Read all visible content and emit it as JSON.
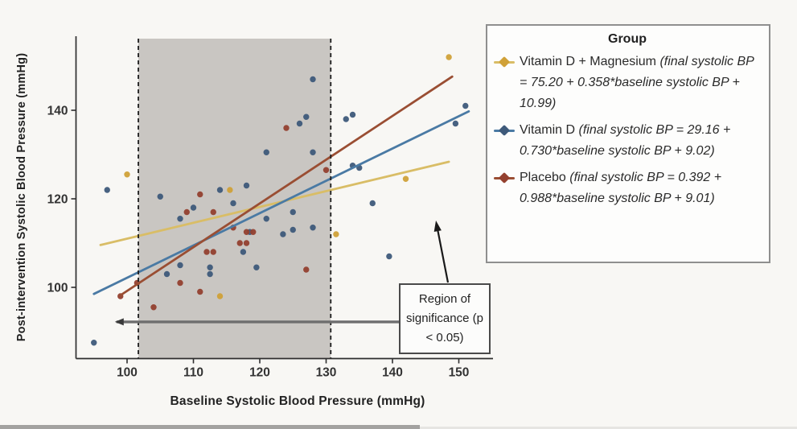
{
  "figure": {
    "y_axis_label": "Post-intervention Systolic Blood Pressure (mmHg)",
    "x_axis_label": "Baseline Systolic Blood Pressure (mmHg)"
  },
  "legend": {
    "title": "Group",
    "entries": [
      {
        "name": "Vitamin D + Magnesium",
        "equation": "(final systolic BP = 75.20 + 0.358*baseline systolic BP + 10.99)",
        "key_color": "#d0a138",
        "line_color": "#d9bd66"
      },
      {
        "name": "Vitamin D",
        "equation": "(final systolic BP = 29.16 + 0.730*baseline systolic BP + 9.02)",
        "key_color": "#3e5a7a",
        "line_color": "#4a7aa4"
      },
      {
        "name": "Placebo",
        "equation": "(final systolic BP = 0.392 + 0.988*baseline systolic BP + 9.01)",
        "key_color": "#94402f",
        "line_color": "#9a4e33"
      }
    ]
  },
  "annotation": {
    "text": "Region of significance (p < 0.05)"
  },
  "chart_data": {
    "type": "scatter",
    "title": "",
    "xlabel": "Baseline Systolic Blood Pressure (mmHg)",
    "ylabel": "Post-intervention Systolic Blood Pressure (mmHg)",
    "xlim": [
      93,
      155
    ],
    "ylim": [
      84,
      157
    ],
    "x_ticks": [
      100,
      110,
      120,
      130,
      140,
      150
    ],
    "y_ticks": [
      100,
      120,
      140
    ],
    "grid": false,
    "legend_position": "right",
    "region_of_significance": {
      "x_start": 101.7,
      "x_end": 130.7,
      "fill": "#c9c6c2",
      "boundary_style": "dashed"
    },
    "significance_segment": {
      "y": 92.2,
      "x_start": 98.4,
      "x_end": 141.0,
      "color": "#6e6e6e"
    },
    "series": [
      {
        "name": "Vitamin D + Magnesium",
        "point_color": "#d0a138",
        "line_color": "#d9bd66",
        "regression": {
          "intercept": 75.2,
          "slope": 0.358,
          "x_range": [
            96,
            148.5
          ]
        },
        "points": [
          [
            100,
            125.5
          ],
          [
            115.5,
            122
          ],
          [
            131.5,
            112
          ],
          [
            142,
            124.5
          ],
          [
            148.5,
            152
          ],
          [
            114,
            98
          ]
        ]
      },
      {
        "name": "Vitamin D",
        "point_color": "#3e5a7a",
        "line_color": "#4a7aa4",
        "regression": {
          "intercept": 29.16,
          "slope": 0.73,
          "x_range": [
            95,
            151.5
          ]
        },
        "points": [
          [
            95,
            87.5
          ],
          [
            97,
            122
          ],
          [
            105,
            120.5
          ],
          [
            106,
            103
          ],
          [
            108,
            105
          ],
          [
            108,
            115.5
          ],
          [
            110,
            118
          ],
          [
            112.5,
            104.5
          ],
          [
            112.5,
            103
          ],
          [
            114,
            122
          ],
          [
            116,
            119
          ],
          [
            117.5,
            108
          ],
          [
            118,
            123
          ],
          [
            118.5,
            112.5
          ],
          [
            119.5,
            104.5
          ],
          [
            121,
            115.5
          ],
          [
            121,
            130.5
          ],
          [
            123.5,
            112
          ],
          [
            125,
            117
          ],
          [
            125,
            113
          ],
          [
            126,
            137
          ],
          [
            127,
            138.5
          ],
          [
            128,
            147
          ],
          [
            128,
            130.5
          ],
          [
            128,
            113.5
          ],
          [
            133,
            138
          ],
          [
            134,
            139
          ],
          [
            134,
            127.5
          ],
          [
            135,
            127
          ],
          [
            137,
            119
          ],
          [
            139.5,
            107
          ],
          [
            149.5,
            137
          ],
          [
            151,
            141
          ]
        ]
      },
      {
        "name": "Placebo",
        "point_color": "#94402f",
        "line_color": "#9a4e33",
        "regression": {
          "intercept": 0.392,
          "slope": 0.988,
          "x_range": [
            99,
            149
          ]
        },
        "points": [
          [
            99,
            98
          ],
          [
            101.5,
            101
          ],
          [
            104,
            95.5
          ],
          [
            108,
            101
          ],
          [
            109,
            117
          ],
          [
            111,
            121
          ],
          [
            111,
            99
          ],
          [
            112,
            108
          ],
          [
            113,
            108
          ],
          [
            113,
            117
          ],
          [
            116,
            113.5
          ],
          [
            117,
            110
          ],
          [
            118,
            110
          ],
          [
            118,
            112.5
          ],
          [
            119,
            112.5
          ],
          [
            124,
            136
          ],
          [
            127,
            104
          ],
          [
            130,
            126.5
          ]
        ]
      }
    ]
  }
}
